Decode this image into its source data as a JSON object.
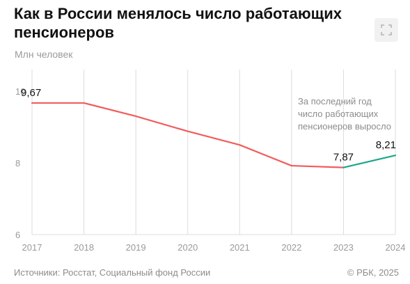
{
  "header": {
    "title": "Как в России менялось число работающих пенсионеров",
    "units": "Млн человек",
    "expand_icon": "fullscreen-icon"
  },
  "footer": {
    "source": "Источники: Росстат, Социальный фонд России",
    "copyright": "© РБК, 2025"
  },
  "colors": {
    "decline": "#f25c5c",
    "growth": "#1aa88a",
    "grid": "#dcdcdc",
    "axis_text": "#9a9a9a",
    "note_text": "#8c8c8c"
  },
  "chart_data": {
    "type": "line",
    "title": "Как в России менялось число работающих пенсионеров",
    "ylabel": "Млн человек",
    "xlabel": "",
    "x": [
      2017,
      2018,
      2019,
      2020,
      2021,
      2022,
      2023,
      2024
    ],
    "x_tick_labels": [
      "2017",
      "2018",
      "2019",
      "2020",
      "2021",
      "2022",
      "2023",
      "2024"
    ],
    "y_ticks": [
      6,
      8,
      10
    ],
    "ylim": [
      6,
      10.6
    ],
    "series": [
      {
        "values": [
          9.67,
          9.67,
          9.3,
          8.88,
          8.5,
          7.92,
          7.87,
          8.21
        ],
        "segment_colors": [
          "decline",
          "decline",
          "decline",
          "decline",
          "decline",
          "decline",
          "growth"
        ]
      }
    ],
    "data_labels": [
      {
        "index": 0,
        "text": "9,67"
      },
      {
        "index": 6,
        "text": "7,87"
      },
      {
        "index": 7,
        "text": "8,21"
      }
    ],
    "annotation": [
      "За последний год",
      "число работающих",
      "пенсионеров выросло"
    ],
    "grid": "vertical",
    "legend": "none"
  }
}
